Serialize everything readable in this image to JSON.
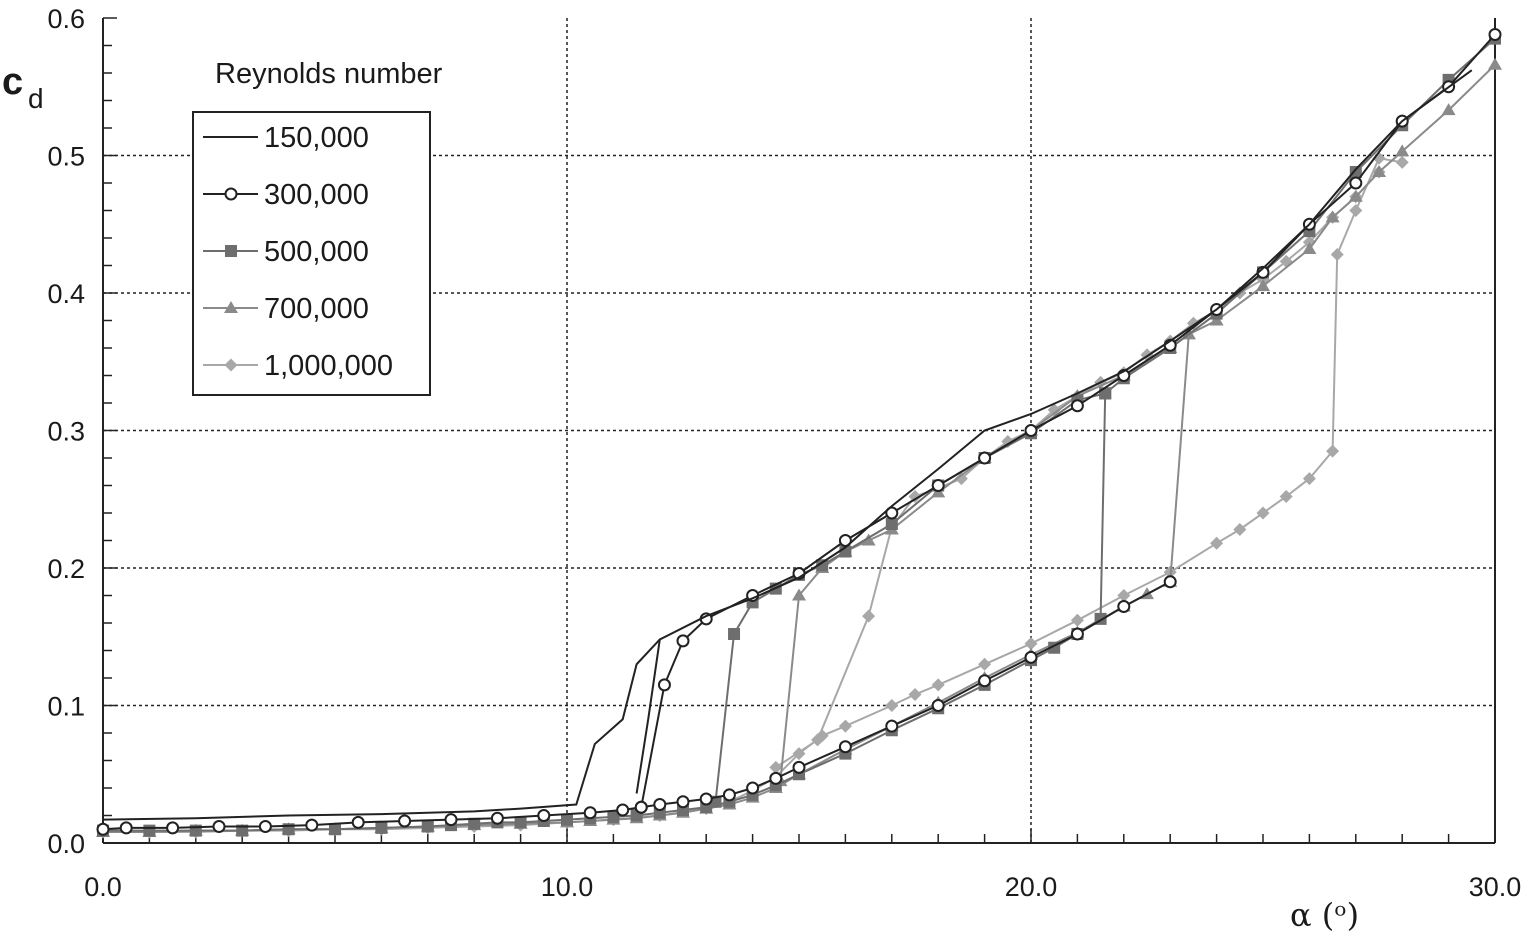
{
  "chart_data": {
    "type": "line",
    "title": "",
    "ylabel_main": "c",
    "ylabel_sub": "d",
    "xlabel": "α (ᵒ)",
    "xlim": [
      0,
      30
    ],
    "ylim": [
      0,
      0.6
    ],
    "x_ticks": [
      {
        "value": 0,
        "label": "0.0"
      },
      {
        "value": 10,
        "label": "10.0"
      },
      {
        "value": 20,
        "label": "20.0"
      },
      {
        "value": 30,
        "label": "30.0"
      }
    ],
    "y_ticks": [
      {
        "value": 0.0,
        "label": "0.0"
      },
      {
        "value": 0.1,
        "label": "0.1"
      },
      {
        "value": 0.2,
        "label": "0.2"
      },
      {
        "value": 0.3,
        "label": "0.3"
      },
      {
        "value": 0.4,
        "label": "0.4"
      },
      {
        "value": 0.5,
        "label": "0.5"
      },
      {
        "value": 0.6,
        "label": "0.6"
      }
    ],
    "grid": "dotted, major ticks",
    "legend_title": "Reynolds number",
    "legend_position": "top-left",
    "series": [
      {
        "name": "150,000",
        "marker": "none",
        "color": "#222222",
        "points": [
          [
            0,
            0.017
          ],
          [
            2,
            0.018
          ],
          [
            4,
            0.02
          ],
          [
            6,
            0.021
          ],
          [
            8,
            0.023
          ],
          [
            9,
            0.025
          ],
          [
            10.2,
            0.028
          ],
          [
            10.6,
            0.072
          ],
          [
            11.2,
            0.09
          ],
          [
            11.5,
            0.13
          ],
          [
            12,
            0.148
          ],
          [
            13,
            0.165
          ],
          [
            14,
            0.178
          ],
          [
            15,
            0.193
          ],
          [
            16,
            0.215
          ],
          [
            17,
            0.245
          ],
          [
            18,
            0.272
          ],
          [
            19,
            0.3
          ],
          [
            20,
            0.312
          ],
          [
            21,
            0.327
          ],
          [
            22,
            0.343
          ],
          [
            23,
            0.365
          ],
          [
            24,
            0.388
          ],
          [
            25,
            0.418
          ],
          [
            26,
            0.45
          ],
          [
            27,
            0.49
          ],
          [
            28,
            0.525
          ],
          [
            29.5,
            0.562
          ]
        ]
      },
      {
        "name": "",
        "marker": "none",
        "color": "#222222",
        "points": [
          [
            11.5,
            0.036
          ],
          [
            11.75,
            0.09
          ],
          [
            12,
            0.148
          ]
        ]
      },
      {
        "name": "300,000",
        "marker": "circle",
        "color": "#222222",
        "points": [
          [
            0,
            0.01
          ],
          [
            0.5,
            0.011
          ],
          [
            1.5,
            0.011
          ],
          [
            2.5,
            0.012
          ],
          [
            3.5,
            0.012
          ],
          [
            4.5,
            0.013
          ],
          [
            5.5,
            0.015
          ],
          [
            6.5,
            0.016
          ],
          [
            7.5,
            0.017
          ],
          [
            8.5,
            0.018
          ],
          [
            9.5,
            0.02
          ],
          [
            10.5,
            0.022
          ],
          [
            11.2,
            0.024
          ],
          [
            11.6,
            0.026
          ],
          [
            12.1,
            0.115
          ],
          [
            12.5,
            0.147
          ],
          [
            13,
            0.163
          ],
          [
            14,
            0.18
          ],
          [
            15,
            0.196
          ],
          [
            16,
            0.22
          ],
          [
            17,
            0.24
          ],
          [
            18,
            0.26
          ],
          [
            19,
            0.28
          ],
          [
            20,
            0.3
          ],
          [
            21,
            0.318
          ],
          [
            22,
            0.34
          ],
          [
            23,
            0.362
          ],
          [
            24,
            0.388
          ],
          [
            25,
            0.415
          ],
          [
            26,
            0.45
          ],
          [
            27,
            0.48
          ],
          [
            28,
            0.525
          ],
          [
            29,
            0.55
          ],
          [
            30,
            0.588
          ]
        ]
      },
      {
        "name": "",
        "marker": "circle",
        "color": "#222222",
        "points": [
          [
            11.6,
            0.026
          ],
          [
            12,
            0.028
          ],
          [
            12.5,
            0.03
          ],
          [
            13,
            0.032
          ],
          [
            13.5,
            0.035
          ],
          [
            14,
            0.04
          ],
          [
            14.5,
            0.047
          ],
          [
            15,
            0.055
          ],
          [
            16,
            0.07
          ],
          [
            17,
            0.085
          ],
          [
            18,
            0.1
          ],
          [
            19,
            0.118
          ],
          [
            20,
            0.135
          ],
          [
            21,
            0.152
          ],
          [
            22,
            0.172
          ],
          [
            23,
            0.19
          ]
        ]
      },
      {
        "name": "500,000",
        "marker": "square",
        "color": "#6e6e6e",
        "points": [
          [
            0,
            0.009
          ],
          [
            1,
            0.009
          ],
          [
            2,
            0.009
          ],
          [
            3,
            0.009
          ],
          [
            4,
            0.01
          ],
          [
            5,
            0.01
          ],
          [
            6,
            0.011
          ],
          [
            7,
            0.012
          ],
          [
            7.5,
            0.013
          ],
          [
            8,
            0.014
          ],
          [
            8.5,
            0.015
          ],
          [
            9,
            0.015
          ],
          [
            9.5,
            0.016
          ],
          [
            10,
            0.017
          ],
          [
            10.5,
            0.018
          ],
          [
            11,
            0.019
          ],
          [
            11.5,
            0.02
          ],
          [
            12,
            0.022
          ],
          [
            12.5,
            0.024
          ],
          [
            13,
            0.026
          ],
          [
            13.5,
            0.03
          ],
          [
            14,
            0.035
          ],
          [
            14.5,
            0.042
          ],
          [
            15,
            0.05
          ],
          [
            16,
            0.065
          ],
          [
            17,
            0.082
          ],
          [
            18,
            0.098
          ],
          [
            19,
            0.115
          ],
          [
            20,
            0.133
          ],
          [
            20.5,
            0.142
          ],
          [
            21,
            0.152
          ],
          [
            21.5,
            0.163
          ],
          [
            21.6,
            0.327
          ],
          [
            21,
            0.322
          ],
          [
            20,
            0.298
          ],
          [
            19,
            0.28
          ],
          [
            18,
            0.26
          ],
          [
            17,
            0.232
          ],
          [
            16,
            0.212
          ],
          [
            15.5,
            0.202
          ],
          [
            15,
            0.195
          ],
          [
            14.5,
            0.185
          ],
          [
            14,
            0.175
          ],
          [
            13.6,
            0.152
          ],
          [
            13.2,
            0.03
          ]
        ]
      },
      {
        "name": "",
        "marker": "square",
        "color": "#6e6e6e",
        "points": [
          [
            21.6,
            0.327
          ],
          [
            22,
            0.338
          ],
          [
            23,
            0.36
          ],
          [
            24,
            0.385
          ],
          [
            25,
            0.415
          ],
          [
            26,
            0.445
          ],
          [
            27,
            0.488
          ],
          [
            28,
            0.522
          ],
          [
            29,
            0.555
          ],
          [
            30,
            0.585
          ]
        ]
      },
      {
        "name": "700,000",
        "marker": "triangle",
        "color": "#8a8a8a",
        "points": [
          [
            0,
            0.008
          ],
          [
            1,
            0.008
          ],
          [
            2,
            0.009
          ],
          [
            3,
            0.009
          ],
          [
            4,
            0.01
          ],
          [
            5,
            0.01
          ],
          [
            6,
            0.011
          ],
          [
            7,
            0.012
          ],
          [
            8,
            0.013
          ],
          [
            9,
            0.014
          ],
          [
            10,
            0.015
          ],
          [
            10.5,
            0.016
          ],
          [
            11,
            0.017
          ],
          [
            11.5,
            0.018
          ],
          [
            12,
            0.02
          ],
          [
            12.5,
            0.022
          ],
          [
            13,
            0.025
          ],
          [
            13.5,
            0.028
          ],
          [
            14,
            0.033
          ],
          [
            14.5,
            0.04
          ],
          [
            15,
            0.05
          ],
          [
            16,
            0.068
          ],
          [
            17,
            0.085
          ],
          [
            18,
            0.102
          ],
          [
            19,
            0.12
          ],
          [
            20,
            0.137
          ],
          [
            21,
            0.153
          ],
          [
            22,
            0.172
          ],
          [
            22.5,
            0.181
          ],
          [
            23,
            0.19
          ],
          [
            23.4,
            0.37
          ],
          [
            24,
            0.38
          ],
          [
            25,
            0.405
          ],
          [
            26,
            0.432
          ],
          [
            26.5,
            0.455
          ],
          [
            27,
            0.47
          ],
          [
            27.5,
            0.488
          ],
          [
            28,
            0.503
          ],
          [
            29,
            0.533
          ],
          [
            30,
            0.566
          ]
        ]
      },
      {
        "name": "",
        "marker": "triangle",
        "color": "#8a8a8a",
        "points": [
          [
            14.6,
            0.045
          ],
          [
            15,
            0.18
          ],
          [
            15.5,
            0.2
          ],
          [
            16,
            0.212
          ],
          [
            16.5,
            0.22
          ],
          [
            17,
            0.228
          ],
          [
            18,
            0.255
          ],
          [
            19,
            0.28
          ],
          [
            20,
            0.3
          ],
          [
            21,
            0.325
          ],
          [
            22,
            0.34
          ],
          [
            23,
            0.36
          ],
          [
            23.4,
            0.37
          ]
        ]
      },
      {
        "name": "1,000,000",
        "marker": "diamond",
        "color": "#a8a8a8",
        "points": [
          [
            0,
            0.008
          ],
          [
            1,
            0.008
          ],
          [
            2,
            0.008
          ],
          [
            3,
            0.009
          ],
          [
            4,
            0.009
          ],
          [
            5,
            0.01
          ],
          [
            6,
            0.01
          ],
          [
            7,
            0.011
          ],
          [
            8,
            0.012
          ],
          [
            9,
            0.013
          ],
          [
            10,
            0.015
          ],
          [
            11,
            0.017
          ],
          [
            12,
            0.02
          ],
          [
            13,
            0.025
          ],
          [
            13.5,
            0.03
          ],
          [
            14,
            0.038
          ],
          [
            14.5,
            0.048
          ],
          [
            15,
            0.065
          ],
          [
            15.5,
            0.078
          ],
          [
            16,
            0.085
          ],
          [
            17,
            0.1
          ],
          [
            17.5,
            0.108
          ],
          [
            18,
            0.115
          ],
          [
            19,
            0.13
          ],
          [
            20,
            0.145
          ],
          [
            21,
            0.162
          ],
          [
            22,
            0.18
          ],
          [
            23,
            0.197
          ],
          [
            24,
            0.218
          ],
          [
            24.5,
            0.228
          ],
          [
            25,
            0.24
          ],
          [
            25.5,
            0.252
          ],
          [
            26,
            0.265
          ],
          [
            26.5,
            0.285
          ],
          [
            26.6,
            0.428
          ],
          [
            27,
            0.46
          ],
          [
            27.5,
            0.498
          ],
          [
            28,
            0.495
          ]
        ]
      },
      {
        "name": "",
        "marker": "diamond",
        "color": "#a8a8a8",
        "points": [
          [
            14.5,
            0.055
          ],
          [
            15.4,
            0.075
          ],
          [
            16.5,
            0.165
          ],
          [
            17,
            0.23
          ],
          [
            17.5,
            0.252
          ],
          [
            18,
            0.258
          ],
          [
            18.5,
            0.265
          ],
          [
            19,
            0.28
          ],
          [
            19.5,
            0.292
          ],
          [
            20,
            0.3
          ],
          [
            20.5,
            0.315
          ],
          [
            21,
            0.325
          ],
          [
            21.5,
            0.335
          ],
          [
            22,
            0.342
          ],
          [
            22.5,
            0.355
          ],
          [
            23,
            0.365
          ],
          [
            23.5,
            0.378
          ],
          [
            24,
            0.387
          ],
          [
            24.5,
            0.4
          ],
          [
            25,
            0.41
          ],
          [
            25.5,
            0.423
          ],
          [
            26,
            0.437
          ],
          [
            26.5,
            0.455
          ],
          [
            27,
            0.47
          ],
          [
            27.5,
            0.488
          ]
        ]
      }
    ]
  }
}
